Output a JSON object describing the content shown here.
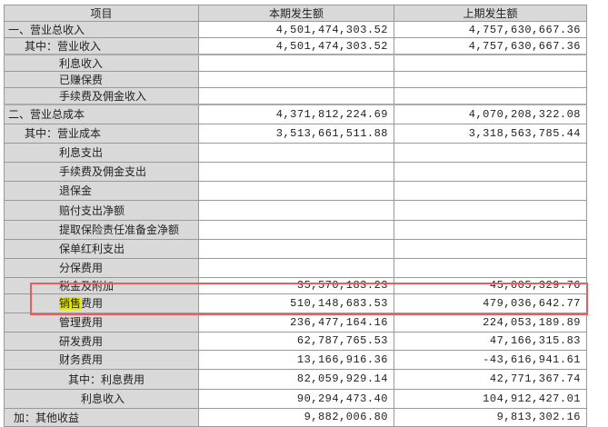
{
  "headers": [
    "项目",
    "本期发生额",
    "上期发生额"
  ],
  "highlight_color": "#e6e600",
  "annotation_box_color": "#f25a5a",
  "rows": [
    {
      "label": "一、营业总收入",
      "current": "4,501,474,303.52",
      "previous": "4,757,630,667.36"
    },
    {
      "label": "其中：营业收入",
      "current": "4,501,474,303.52",
      "previous": "4,757,630,667.36"
    },
    {
      "label": "利息收入",
      "current": "",
      "previous": ""
    },
    {
      "label": "已赚保费",
      "current": "",
      "previous": ""
    },
    {
      "label": "手续费及佣金收入",
      "current": "",
      "previous": ""
    },
    {
      "label": "二、营业总成本",
      "current": "4,371,812,224.69",
      "previous": "4,070,208,322.08"
    },
    {
      "label": "其中：营业成本",
      "current": "3,513,661,511.88",
      "previous": "3,318,563,785.44"
    },
    {
      "label": "利息支出",
      "current": "",
      "previous": ""
    },
    {
      "label": "手续费及佣金支出",
      "current": "",
      "previous": ""
    },
    {
      "label": "退保金",
      "current": "",
      "previous": ""
    },
    {
      "label": "赔付支出净额",
      "current": "",
      "previous": ""
    },
    {
      "label": "提取保险责任准备金净额",
      "current": "",
      "previous": ""
    },
    {
      "label": "保单红利支出",
      "current": "",
      "previous": ""
    },
    {
      "label": "分保费用",
      "current": "",
      "previous": ""
    },
    {
      "label": "税金及附加",
      "current": "35,570,183.23",
      "previous": "45,005,329.76"
    },
    {
      "label_highlight": "销售",
      "label": "费用",
      "current": "510,148,683.53",
      "previous": "479,036,642.77"
    },
    {
      "label": "管理费用",
      "current": "236,477,164.16",
      "previous": "224,053,189.89"
    },
    {
      "label": "研发费用",
      "current": "62,787,765.53",
      "previous": "47,166,315.83"
    },
    {
      "label": "财务费用",
      "current": "13,166,916.36",
      "previous": "-43,616,941.61"
    },
    {
      "label": "其中：利息费用",
      "current": "82,059,929.14",
      "previous": "42,771,367.74"
    },
    {
      "label": "利息收入",
      "current": "90,294,473.40",
      "previous": "104,912,427.01"
    },
    {
      "label": "加：其他收益",
      "current": "9,882,006.80",
      "previous": "9,813,302.16"
    }
  ]
}
